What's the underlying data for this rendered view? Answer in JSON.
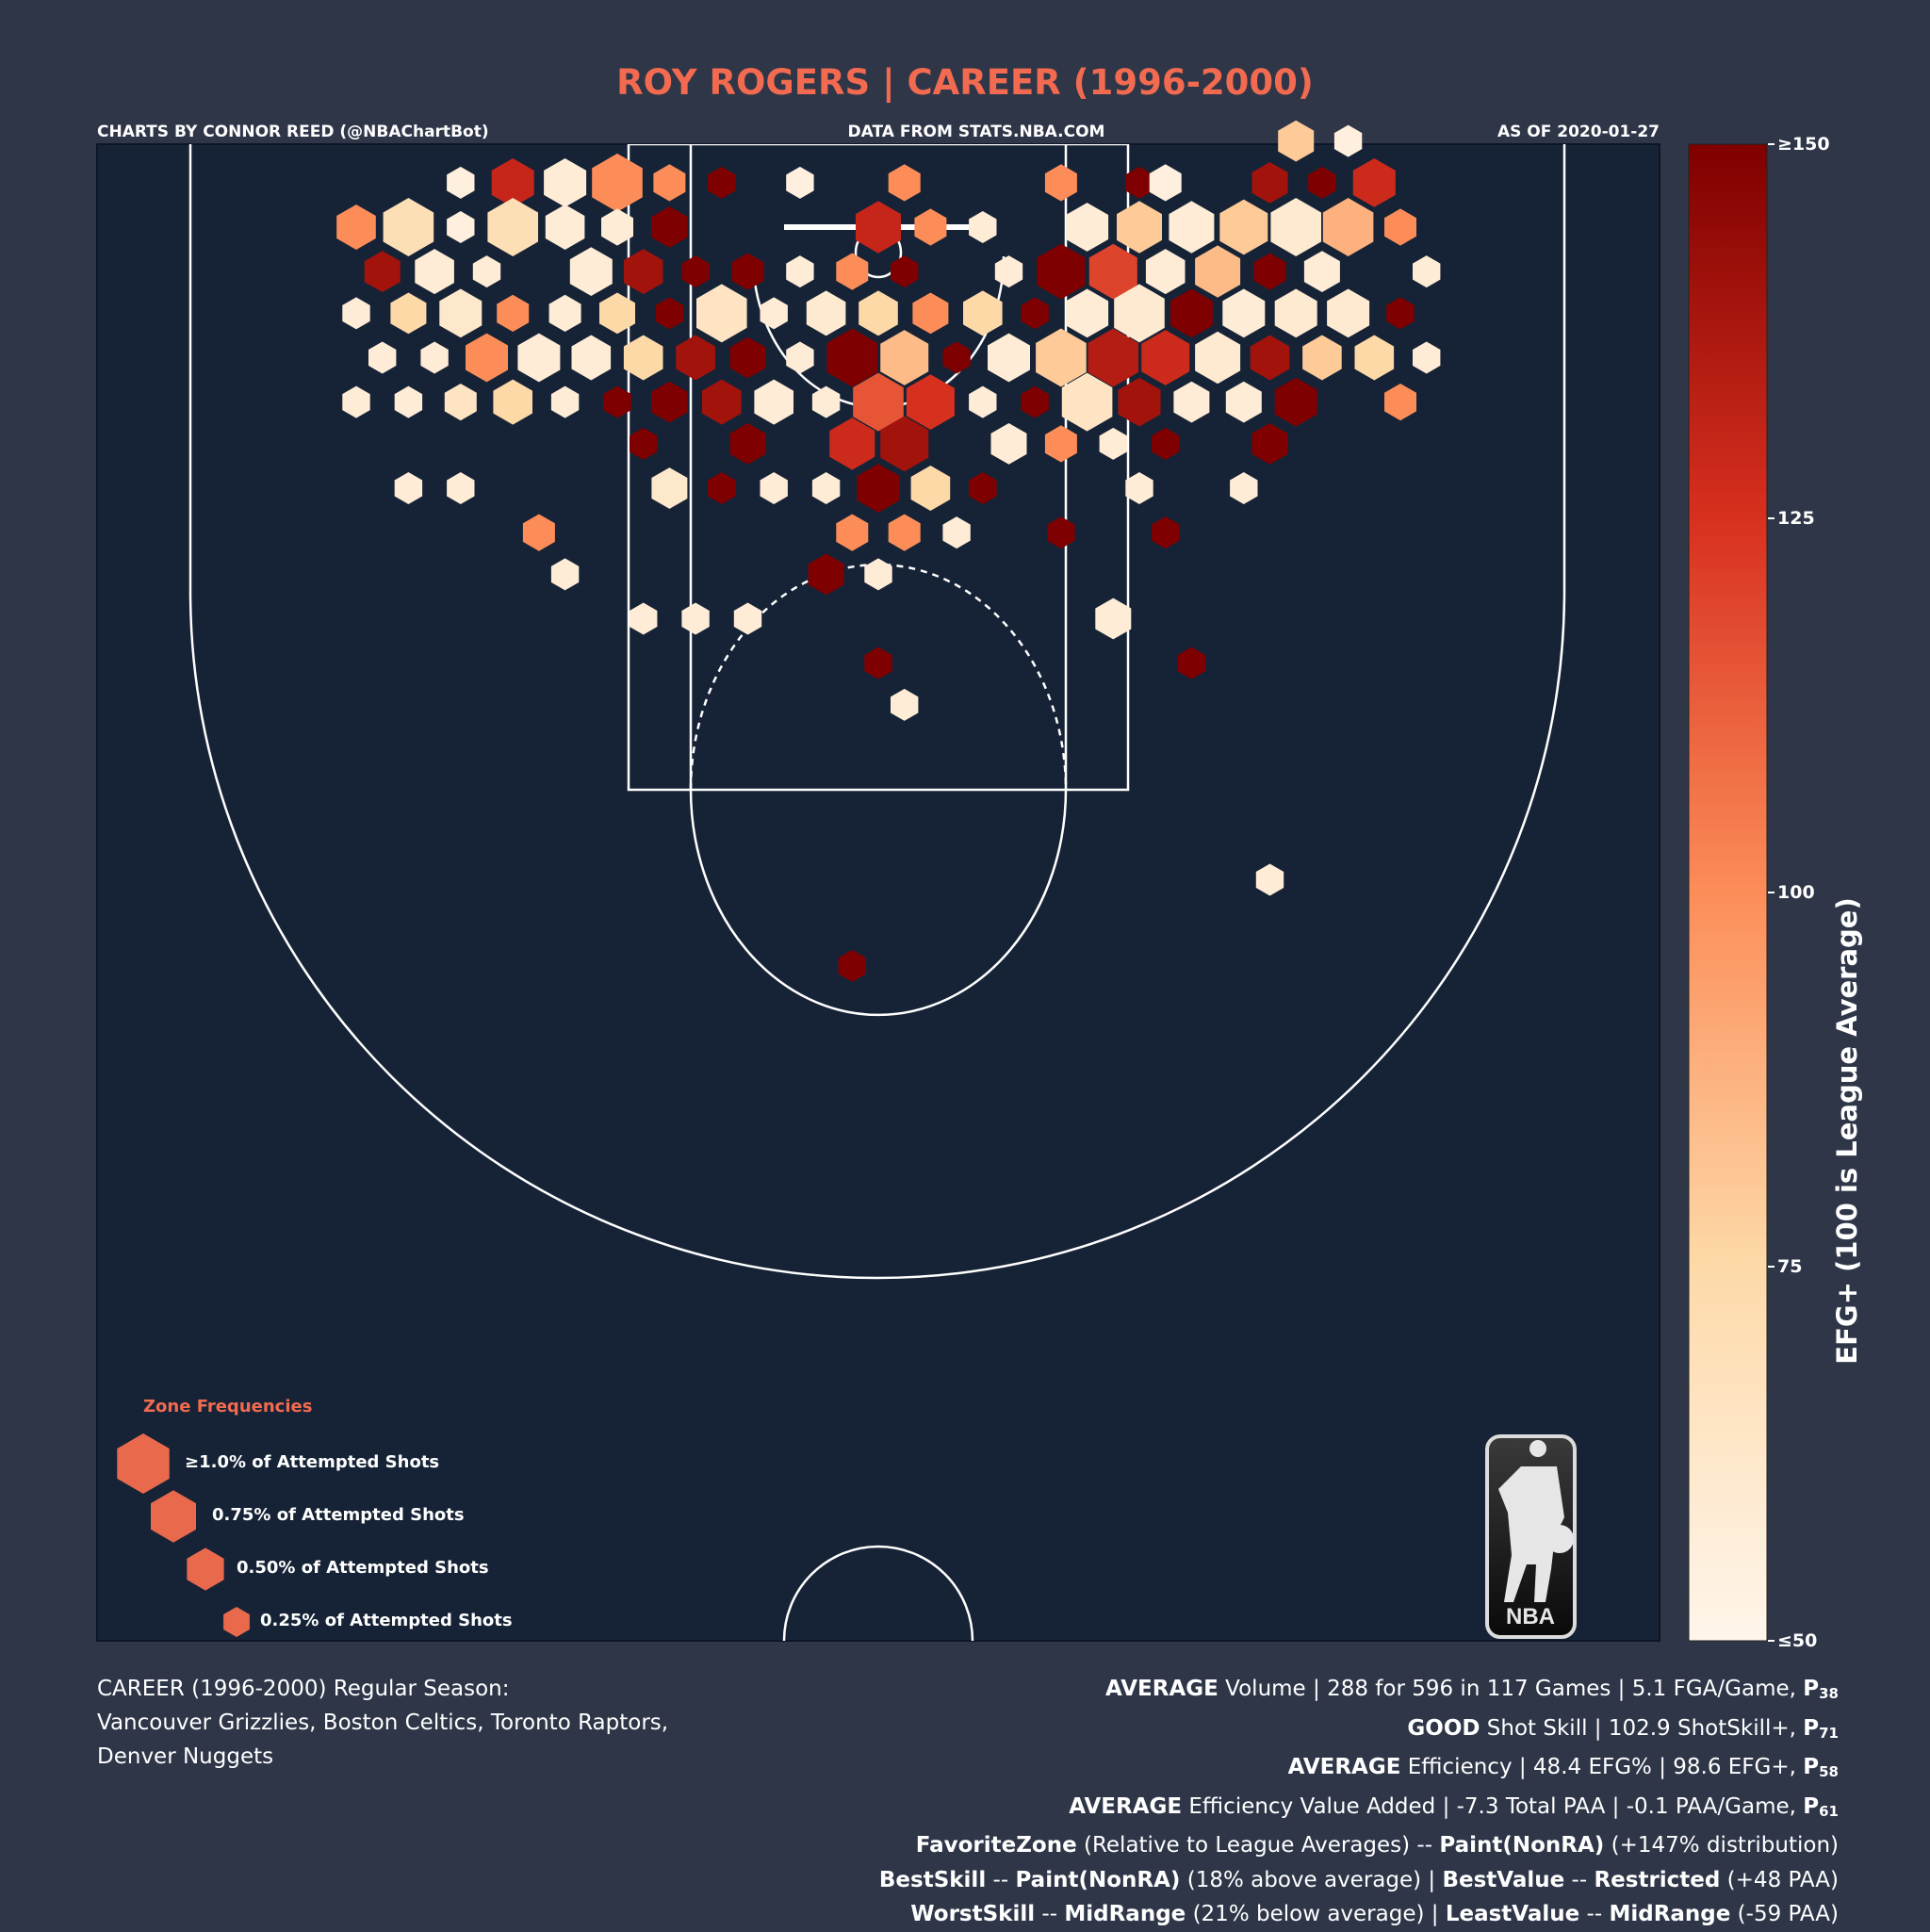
{
  "header": {
    "title": "ROY ROGERS | CAREER (1996-2000)",
    "credit_left": "CHARTS BY CONNOR REED (@NBAChartBot)",
    "credit_center": "DATA FROM STATS.NBA.COM",
    "credit_right": "AS OF 2020-01-27"
  },
  "colorbar": {
    "label": "EFG+ (100 is League Average)",
    "ticks": [
      "≥150",
      "125",
      "100",
      "75",
      "≤50"
    ],
    "tick_values": [
      150,
      125,
      100,
      75,
      50
    ],
    "range": [
      50,
      150
    ]
  },
  "legend": {
    "title": "Zone Frequencies",
    "items": [
      {
        "label": "≥1.0% of Attempted Shots",
        "frequency": 1.0
      },
      {
        "label": "0.75% of Attempted Shots",
        "frequency": 0.75
      },
      {
        "label": "0.50% of Attempted Shots",
        "frequency": 0.5
      },
      {
        "label": "0.25% of Attempted Shots",
        "frequency": 0.25
      }
    ]
  },
  "logo": {
    "text": "NBA"
  },
  "footer": {
    "season_line1": "CAREER (1996-2000) Regular Season:",
    "season_line2": "Vancouver Grizzlies, Boston Celtics, Toronto Raptors,",
    "season_line3": "Denver Nuggets",
    "stats": [
      {
        "rating": "AVERAGE",
        "text": " Volume | 288 for 596 in 117 Games | 5.1 FGA/Game, ",
        "p": "P",
        "psub": "38"
      },
      {
        "rating": "GOOD",
        "text": " Shot Skill | 102.9 ShotSkill+, ",
        "p": "P",
        "psub": "71"
      },
      {
        "rating": "AVERAGE",
        "text": " Efficiency | 48.4 EFG% | 98.6 EFG+, ",
        "p": "P",
        "psub": "58"
      },
      {
        "rating": "AVERAGE",
        "text": " Efficiency Value Added | -7.3 Total PAA | -0.1 PAA/Game, ",
        "p": "P",
        "psub": "61"
      }
    ],
    "favorite": {
      "k1": "FavoriteZone",
      "t1": " (Relative to League Averages) -- ",
      "k2": "Paint(NonRA)",
      "t2": " (+147% distribution)"
    },
    "best": {
      "k1": "BestSkill",
      "t1": " -- ",
      "k2": "Paint(NonRA)",
      "t2": " (18% above average) | ",
      "k3": "BestValue",
      "t3": " -- ",
      "k4": "Restricted",
      "t4": " (+48 PAA)"
    },
    "worst": {
      "k1": "WorstSkill",
      "t1": " -- ",
      "k2": "MidRange",
      "t2": " (21% below average) | ",
      "k3": "LeastValue",
      "t3": " -- ",
      "k4": "MidRange",
      "t4": " (-59 PAA)"
    }
  },
  "chart_data": {
    "type": "hexbin",
    "color_metric": "EFG+",
    "size_metric": "share of attempted shots (%)",
    "court": {
      "x_range": [
        -250,
        250
      ],
      "y_range": [
        -47.5,
        422.5
      ],
      "hoop": [
        0,
        0
      ]
    },
    "hexes": [
      {
        "x": -160,
        "y": -17,
        "s": 0.3,
        "v": 55
      },
      {
        "x": -140,
        "y": -17,
        "s": 0.7,
        "v": 130
      },
      {
        "x": -120,
        "y": -17,
        "s": 0.7,
        "v": 58
      },
      {
        "x": -100,
        "y": -17,
        "s": 1.0,
        "v": 100
      },
      {
        "x": -80,
        "y": -17,
        "s": 0.4,
        "v": 100
      },
      {
        "x": -60,
        "y": -17,
        "s": 0.3,
        "v": 150
      },
      {
        "x": -30,
        "y": -17,
        "s": 0.3,
        "v": 55
      },
      {
        "x": 10,
        "y": -17,
        "s": 0.4,
        "v": 100
      },
      {
        "x": 70,
        "y": -17,
        "s": 0.4,
        "v": 100
      },
      {
        "x": 100,
        "y": -17,
        "s": 0.3,
        "v": 150
      },
      {
        "x": 110,
        "y": -17,
        "s": 0.4,
        "v": 55
      },
      {
        "x": 150,
        "y": -17,
        "s": 0.5,
        "v": 140
      },
      {
        "x": 170,
        "y": -17,
        "s": 0.3,
        "v": 150
      },
      {
        "x": 190,
        "y": -17,
        "s": 0.7,
        "v": 128
      },
      {
        "x": 160,
        "y": -33,
        "s": 0.5,
        "v": 80
      },
      {
        "x": 180,
        "y": -33,
        "s": 0.3,
        "v": 55
      },
      {
        "x": -200,
        "y": 0,
        "s": 0.6,
        "v": 100
      },
      {
        "x": -180,
        "y": 0,
        "s": 1.0,
        "v": 70
      },
      {
        "x": -160,
        "y": 0,
        "s": 0.3,
        "v": 55
      },
      {
        "x": -140,
        "y": 0,
        "s": 1.0,
        "v": 70
      },
      {
        "x": -120,
        "y": 0,
        "s": 0.6,
        "v": 58
      },
      {
        "x": -100,
        "y": 0,
        "s": 0.4,
        "v": 58
      },
      {
        "x": -80,
        "y": 0,
        "s": 0.5,
        "v": 150
      },
      {
        "x": 0,
        "y": 0,
        "s": 0.8,
        "v": 130
      },
      {
        "x": 20,
        "y": 0,
        "s": 0.4,
        "v": 100
      },
      {
        "x": 40,
        "y": 0,
        "s": 0.3,
        "v": 58
      },
      {
        "x": 80,
        "y": 0,
        "s": 0.7,
        "v": 58
      },
      {
        "x": 100,
        "y": 0,
        "s": 0.8,
        "v": 80
      },
      {
        "x": 120,
        "y": 0,
        "s": 0.8,
        "v": 58
      },
      {
        "x": 140,
        "y": 0,
        "s": 0.9,
        "v": 80
      },
      {
        "x": 160,
        "y": 0,
        "s": 1.0,
        "v": 60
      },
      {
        "x": 180,
        "y": 0,
        "s": 1.0,
        "v": 88
      },
      {
        "x": 200,
        "y": 0,
        "s": 0.4,
        "v": 100
      },
      {
        "x": -190,
        "y": 17,
        "s": 0.5,
        "v": 140
      },
      {
        "x": -170,
        "y": 17,
        "s": 0.6,
        "v": 58
      },
      {
        "x": -150,
        "y": 17,
        "s": 0.3,
        "v": 58
      },
      {
        "x": -110,
        "y": 17,
        "s": 0.7,
        "v": 58
      },
      {
        "x": -90,
        "y": 17,
        "s": 0.6,
        "v": 140
      },
      {
        "x": -70,
        "y": 17,
        "s": 0.3,
        "v": 150
      },
      {
        "x": -50,
        "y": 17,
        "s": 0.4,
        "v": 150
      },
      {
        "x": -30,
        "y": 17,
        "s": 0.3,
        "v": 58
      },
      {
        "x": -10,
        "y": 17,
        "s": 0.4,
        "v": 100
      },
      {
        "x": 10,
        "y": 17,
        "s": 0.3,
        "v": 150
      },
      {
        "x": 50,
        "y": 17,
        "s": 0.3,
        "v": 58
      },
      {
        "x": 70,
        "y": 17,
        "s": 0.9,
        "v": 150
      },
      {
        "x": 90,
        "y": 17,
        "s": 0.9,
        "v": 120
      },
      {
        "x": 110,
        "y": 17,
        "s": 0.6,
        "v": 58
      },
      {
        "x": 130,
        "y": 17,
        "s": 0.8,
        "v": 85
      },
      {
        "x": 150,
        "y": 17,
        "s": 0.4,
        "v": 150
      },
      {
        "x": 170,
        "y": 17,
        "s": 0.5,
        "v": 58
      },
      {
        "x": 210,
        "y": 17,
        "s": 0.3,
        "v": 58
      },
      {
        "x": -200,
        "y": 33,
        "s": 0.3,
        "v": 58
      },
      {
        "x": -180,
        "y": 33,
        "s": 0.5,
        "v": 75
      },
      {
        "x": -160,
        "y": 33,
        "s": 0.7,
        "v": 62
      },
      {
        "x": -140,
        "y": 33,
        "s": 0.4,
        "v": 100
      },
      {
        "x": -120,
        "y": 33,
        "s": 0.4,
        "v": 58
      },
      {
        "x": -100,
        "y": 33,
        "s": 0.5,
        "v": 75
      },
      {
        "x": -80,
        "y": 33,
        "s": 0.3,
        "v": 150
      },
      {
        "x": -60,
        "y": 33,
        "s": 1.0,
        "v": 65
      },
      {
        "x": -40,
        "y": 33,
        "s": 0.3,
        "v": 58
      },
      {
        "x": -20,
        "y": 33,
        "s": 0.6,
        "v": 60
      },
      {
        "x": 0,
        "y": 33,
        "s": 0.6,
        "v": 75
      },
      {
        "x": 20,
        "y": 33,
        "s": 0.5,
        "v": 100
      },
      {
        "x": 40,
        "y": 33,
        "s": 0.6,
        "v": 75
      },
      {
        "x": 60,
        "y": 33,
        "s": 0.3,
        "v": 150
      },
      {
        "x": 80,
        "y": 33,
        "s": 0.7,
        "v": 58
      },
      {
        "x": 100,
        "y": 33,
        "s": 1.0,
        "v": 60
      },
      {
        "x": 120,
        "y": 33,
        "s": 0.7,
        "v": 150
      },
      {
        "x": 140,
        "y": 33,
        "s": 0.7,
        "v": 58
      },
      {
        "x": 160,
        "y": 33,
        "s": 0.7,
        "v": 60
      },
      {
        "x": 180,
        "y": 33,
        "s": 0.7,
        "v": 60
      },
      {
        "x": 200,
        "y": 33,
        "s": 0.3,
        "v": 150
      },
      {
        "x": -190,
        "y": 50,
        "s": 0.3,
        "v": 58
      },
      {
        "x": -170,
        "y": 50,
        "s": 0.3,
        "v": 58
      },
      {
        "x": -150,
        "y": 50,
        "s": 0.7,
        "v": 100
      },
      {
        "x": -130,
        "y": 50,
        "s": 0.7,
        "v": 58
      },
      {
        "x": -110,
        "y": 50,
        "s": 0.6,
        "v": 58
      },
      {
        "x": -90,
        "y": 50,
        "s": 0.6,
        "v": 75
      },
      {
        "x": -70,
        "y": 50,
        "s": 0.6,
        "v": 140
      },
      {
        "x": -50,
        "y": 50,
        "s": 0.5,
        "v": 150
      },
      {
        "x": -30,
        "y": 50,
        "s": 0.3,
        "v": 58
      },
      {
        "x": -10,
        "y": 50,
        "s": 1.0,
        "v": 150
      },
      {
        "x": 10,
        "y": 50,
        "s": 0.9,
        "v": 85
      },
      {
        "x": 30,
        "y": 50,
        "s": 0.3,
        "v": 150
      },
      {
        "x": 50,
        "y": 50,
        "s": 0.7,
        "v": 58
      },
      {
        "x": 70,
        "y": 50,
        "s": 1.0,
        "v": 80
      },
      {
        "x": 90,
        "y": 50,
        "s": 1.0,
        "v": 135
      },
      {
        "x": 110,
        "y": 50,
        "s": 0.9,
        "v": 128
      },
      {
        "x": 130,
        "y": 50,
        "s": 0.8,
        "v": 60
      },
      {
        "x": 150,
        "y": 50,
        "s": 0.6,
        "v": 140
      },
      {
        "x": 170,
        "y": 50,
        "s": 0.6,
        "v": 80
      },
      {
        "x": 190,
        "y": 50,
        "s": 0.6,
        "v": 75
      },
      {
        "x": 210,
        "y": 50,
        "s": 0.3,
        "v": 58
      },
      {
        "x": -200,
        "y": 67,
        "s": 0.3,
        "v": 58
      },
      {
        "x": -180,
        "y": 67,
        "s": 0.3,
        "v": 58
      },
      {
        "x": -160,
        "y": 67,
        "s": 0.4,
        "v": 65
      },
      {
        "x": -140,
        "y": 67,
        "s": 0.6,
        "v": 75
      },
      {
        "x": -120,
        "y": 67,
        "s": 0.3,
        "v": 58
      },
      {
        "x": -100,
        "y": 67,
        "s": 0.3,
        "v": 150
      },
      {
        "x": -80,
        "y": 67,
        "s": 0.5,
        "v": 150
      },
      {
        "x": -60,
        "y": 67,
        "s": 0.6,
        "v": 140
      },
      {
        "x": -40,
        "y": 67,
        "s": 0.6,
        "v": 58
      },
      {
        "x": -20,
        "y": 67,
        "s": 0.3,
        "v": 58
      },
      {
        "x": 0,
        "y": 67,
        "s": 1.0,
        "v": 115
      },
      {
        "x": 20,
        "y": 67,
        "s": 0.9,
        "v": 125
      },
      {
        "x": 40,
        "y": 67,
        "s": 0.3,
        "v": 58
      },
      {
        "x": 60,
        "y": 67,
        "s": 0.3,
        "v": 150
      },
      {
        "x": 80,
        "y": 67,
        "s": 1.0,
        "v": 65
      },
      {
        "x": 100,
        "y": 67,
        "s": 0.7,
        "v": 140
      },
      {
        "x": 120,
        "y": 67,
        "s": 0.5,
        "v": 58
      },
      {
        "x": 140,
        "y": 67,
        "s": 0.5,
        "v": 58
      },
      {
        "x": 160,
        "y": 67,
        "s": 0.7,
        "v": 150
      },
      {
        "x": 200,
        "y": 67,
        "s": 0.4,
        "v": 100
      },
      {
        "x": -90,
        "y": 83,
        "s": 0.3,
        "v": 150
      },
      {
        "x": -50,
        "y": 83,
        "s": 0.5,
        "v": 150
      },
      {
        "x": -10,
        "y": 83,
        "s": 0.8,
        "v": 128
      },
      {
        "x": 10,
        "y": 83,
        "s": 0.9,
        "v": 140
      },
      {
        "x": 50,
        "y": 83,
        "s": 0.5,
        "v": 58
      },
      {
        "x": 70,
        "y": 83,
        "s": 0.4,
        "v": 100
      },
      {
        "x": 90,
        "y": 83,
        "s": 0.3,
        "v": 58
      },
      {
        "x": 110,
        "y": 83,
        "s": 0.3,
        "v": 150
      },
      {
        "x": 150,
        "y": 83,
        "s": 0.5,
        "v": 150
      },
      {
        "x": -180,
        "y": 100,
        "s": 0.3,
        "v": 58
      },
      {
        "x": -160,
        "y": 100,
        "s": 0.3,
        "v": 58
      },
      {
        "x": -80,
        "y": 100,
        "s": 0.5,
        "v": 62
      },
      {
        "x": -60,
        "y": 100,
        "s": 0.3,
        "v": 150
      },
      {
        "x": -40,
        "y": 100,
        "s": 0.3,
        "v": 58
      },
      {
        "x": -20,
        "y": 100,
        "s": 0.3,
        "v": 58
      },
      {
        "x": 0,
        "y": 100,
        "s": 0.7,
        "v": 150
      },
      {
        "x": 20,
        "y": 100,
        "s": 0.6,
        "v": 75
      },
      {
        "x": 40,
        "y": 100,
        "s": 0.3,
        "v": 150
      },
      {
        "x": 100,
        "y": 100,
        "s": 0.3,
        "v": 58
      },
      {
        "x": 140,
        "y": 100,
        "s": 0.3,
        "v": 58
      },
      {
        "x": -130,
        "y": 117,
        "s": 0.4,
        "v": 100
      },
      {
        "x": -10,
        "y": 117,
        "s": 0.4,
        "v": 100
      },
      {
        "x": 10,
        "y": 117,
        "s": 0.4,
        "v": 100
      },
      {
        "x": 30,
        "y": 117,
        "s": 0.3,
        "v": 58
      },
      {
        "x": 70,
        "y": 117,
        "s": 0.3,
        "v": 150
      },
      {
        "x": 110,
        "y": 117,
        "s": 0.3,
        "v": 150
      },
      {
        "x": -120,
        "y": 133,
        "s": 0.3,
        "v": 58
      },
      {
        "x": -20,
        "y": 133,
        "s": 0.5,
        "v": 150
      },
      {
        "x": 0,
        "y": 133,
        "s": 0.3,
        "v": 58
      },
      {
        "x": -90,
        "y": 150,
        "s": 0.3,
        "v": 58
      },
      {
        "x": -70,
        "y": 150,
        "s": 0.3,
        "v": 58
      },
      {
        "x": -50,
        "y": 150,
        "s": 0.3,
        "v": 58
      },
      {
        "x": 90,
        "y": 150,
        "s": 0.5,
        "v": 58
      },
      {
        "x": 0,
        "y": 167,
        "s": 0.3,
        "v": 150
      },
      {
        "x": 120,
        "y": 167,
        "s": 0.3,
        "v": 150
      },
      {
        "x": 10,
        "y": 183,
        "s": 0.3,
        "v": 58
      },
      {
        "x": 150,
        "y": 250,
        "s": 0.3,
        "v": 58
      },
      {
        "x": -10,
        "y": 283,
        "s": 0.3,
        "v": 150
      }
    ]
  }
}
